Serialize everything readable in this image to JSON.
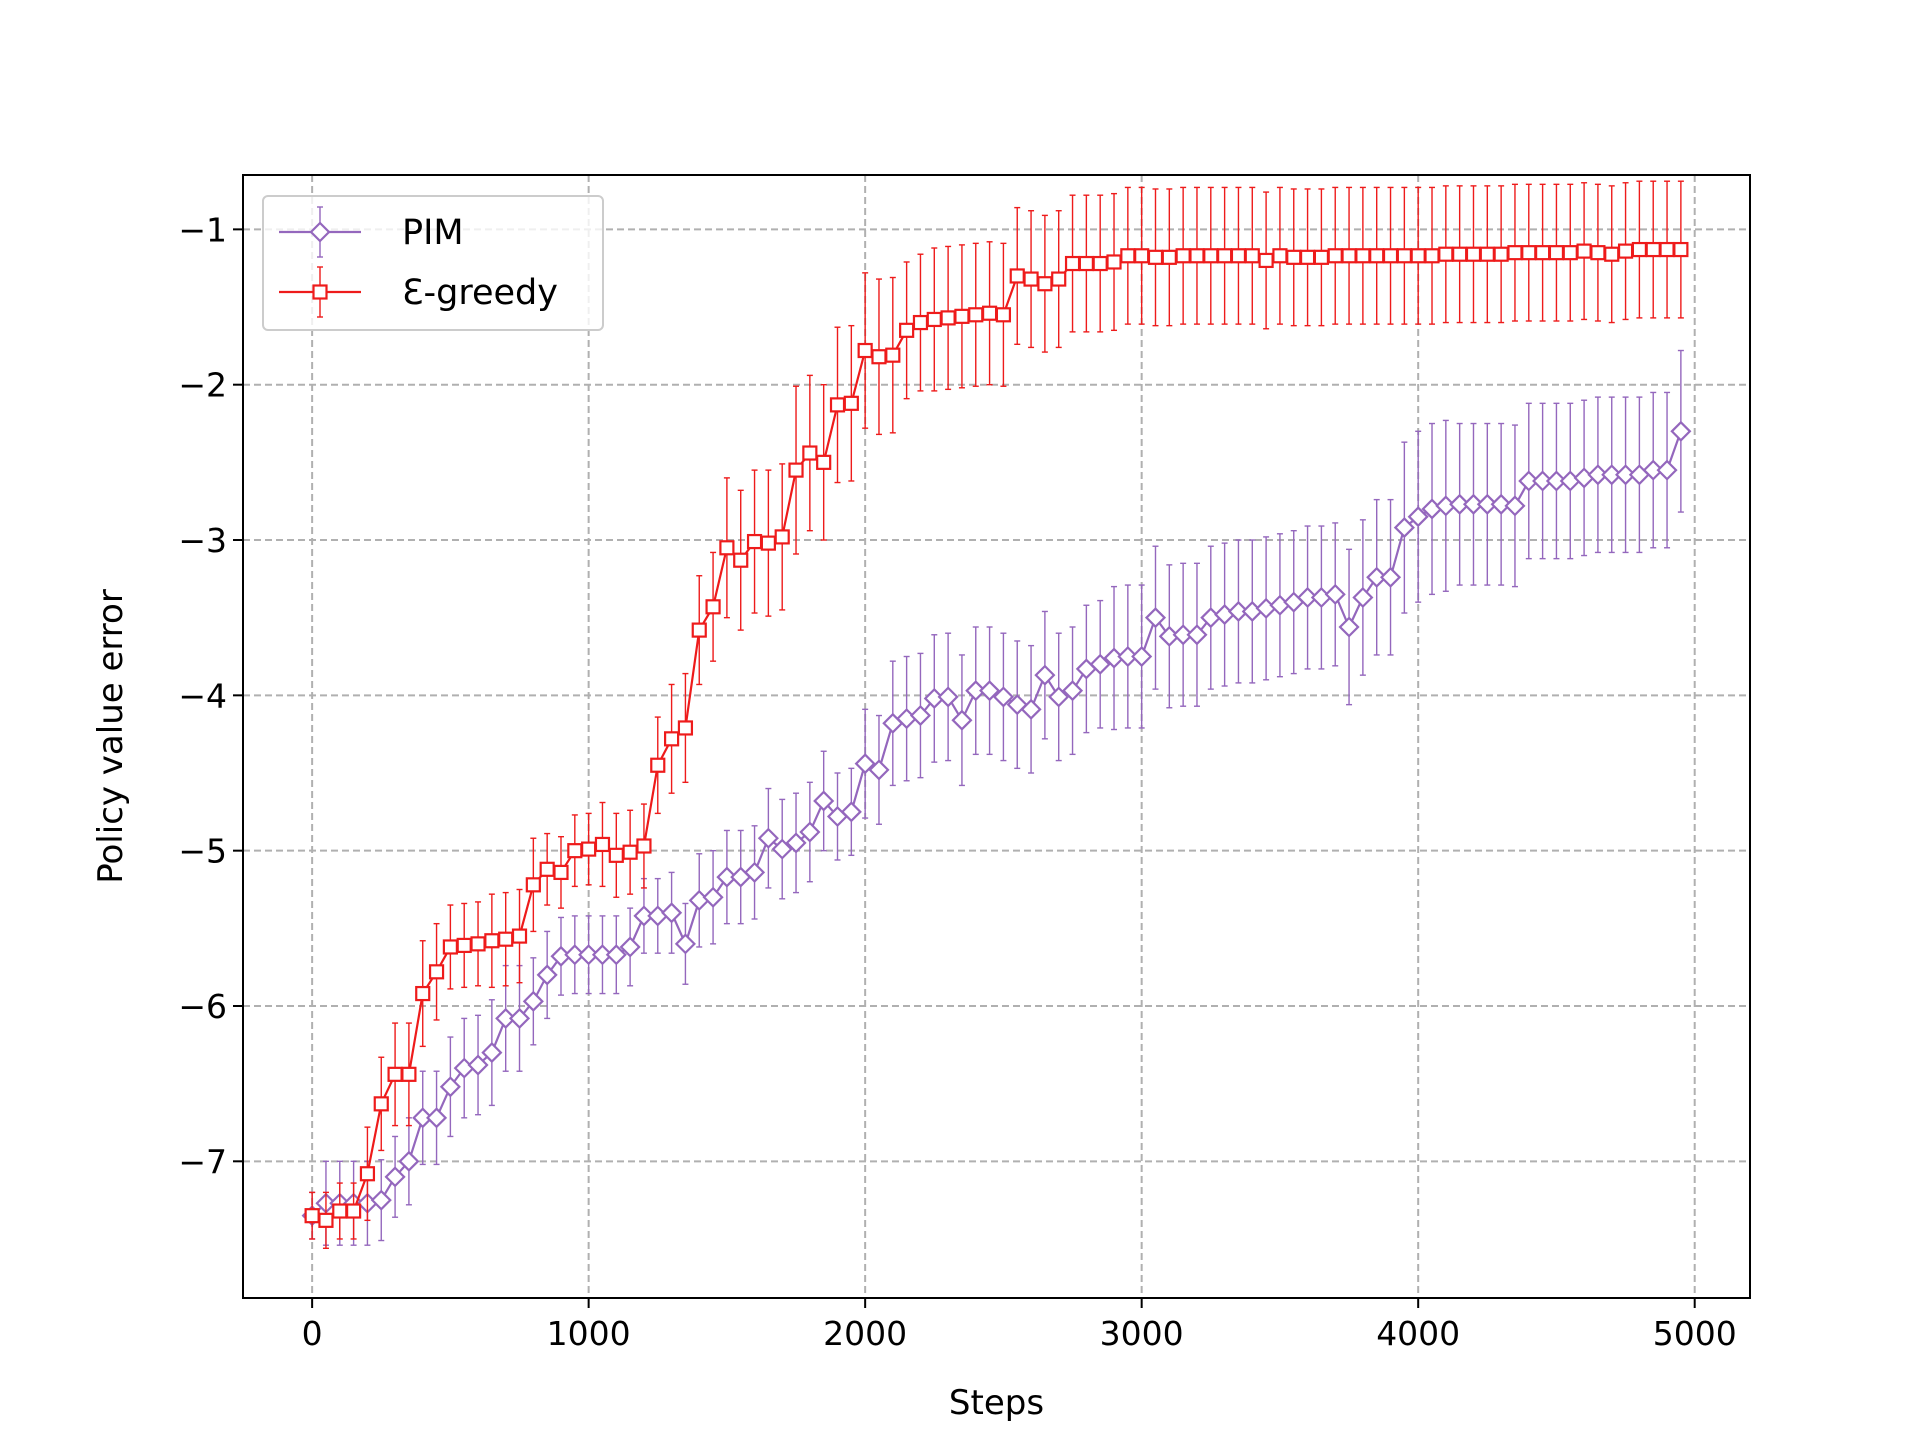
{
  "chart_data": {
    "type": "line",
    "title": "",
    "xlabel": "Steps",
    "ylabel": "Policy value error",
    "xlim": [
      -250,
      5200
    ],
    "ylim": [
      -7.88,
      -0.65
    ],
    "xticks": [
      0,
      1000,
      2000,
      3000,
      4000,
      5000
    ],
    "xtick_labels": [
      "0",
      "1000",
      "2000",
      "3000",
      "4000",
      "5000"
    ],
    "yticks": [
      -7,
      -6,
      -5,
      -4,
      -3,
      -2,
      -1
    ],
    "ytick_labels": [
      "−7",
      "−6",
      "−5",
      "−4",
      "−3",
      "−2",
      "−1"
    ],
    "grid": true,
    "legend_position": "top-left",
    "x": [
      0,
      50,
      100,
      150,
      200,
      250,
      300,
      350,
      400,
      450,
      500,
      550,
      600,
      650,
      700,
      750,
      800,
      850,
      900,
      950,
      1000,
      1050,
      1100,
      1150,
      1200,
      1250,
      1300,
      1350,
      1400,
      1450,
      1500,
      1550,
      1600,
      1650,
      1700,
      1750,
      1800,
      1850,
      1900,
      1950,
      2000,
      2050,
      2100,
      2150,
      2200,
      2250,
      2300,
      2350,
      2400,
      2450,
      2500,
      2550,
      2600,
      2650,
      2700,
      2750,
      2800,
      2850,
      2900,
      2950,
      3000,
      3050,
      3100,
      3150,
      3200,
      3250,
      3300,
      3350,
      3400,
      3450,
      3500,
      3550,
      3600,
      3650,
      3700,
      3750,
      3800,
      3850,
      3900,
      3950,
      4000,
      4050,
      4100,
      4150,
      4200,
      4250,
      4300,
      4350,
      4400,
      4450,
      4500,
      4550,
      4600,
      4650,
      4700,
      4750,
      4800,
      4850,
      4900,
      4950
    ],
    "series": [
      {
        "name": "PIM",
        "color": "#9467bd",
        "marker": "diamond",
        "values": [
          -7.35,
          -7.27,
          -7.27,
          -7.27,
          -7.27,
          -7.25,
          -7.1,
          -7.0,
          -6.72,
          -6.72,
          -6.52,
          -6.4,
          -6.38,
          -6.3,
          -6.08,
          -6.08,
          -5.97,
          -5.8,
          -5.68,
          -5.67,
          -5.67,
          -5.67,
          -5.67,
          -5.62,
          -5.42,
          -5.42,
          -5.4,
          -5.6,
          -5.32,
          -5.3,
          -5.17,
          -5.17,
          -5.14,
          -4.92,
          -4.99,
          -4.95,
          -4.88,
          -4.68,
          -4.78,
          -4.75,
          -4.44,
          -4.48,
          -4.18,
          -4.15,
          -4.13,
          -4.02,
          -4.01,
          -4.16,
          -3.97,
          -3.97,
          -4.01,
          -4.06,
          -4.09,
          -3.87,
          -4.01,
          -3.97,
          -3.83,
          -3.8,
          -3.76,
          -3.75,
          -3.75,
          -3.5,
          -3.62,
          -3.61,
          -3.61,
          -3.5,
          -3.48,
          -3.46,
          -3.46,
          -3.44,
          -3.42,
          -3.4,
          -3.37,
          -3.37,
          -3.35,
          -3.56,
          -3.37,
          -3.24,
          -3.24,
          -2.92,
          -2.85,
          -2.8,
          -2.78,
          -2.77,
          -2.77,
          -2.77,
          -2.77,
          -2.78,
          -2.62,
          -2.62,
          -2.62,
          -2.62,
          -2.6,
          -2.58,
          -2.58,
          -2.58,
          -2.58,
          -2.55,
          -2.55,
          -2.3
        ],
        "errors": [
          0.15,
          0.27,
          0.27,
          0.27,
          0.27,
          0.26,
          0.26,
          0.28,
          0.3,
          0.3,
          0.32,
          0.32,
          0.32,
          0.34,
          0.34,
          0.34,
          0.28,
          0.28,
          0.25,
          0.25,
          0.25,
          0.25,
          0.25,
          0.25,
          0.24,
          0.24,
          0.26,
          0.26,
          0.3,
          0.3,
          0.3,
          0.3,
          0.3,
          0.32,
          0.32,
          0.32,
          0.32,
          0.32,
          0.28,
          0.28,
          0.35,
          0.35,
          0.4,
          0.4,
          0.4,
          0.41,
          0.41,
          0.42,
          0.41,
          0.41,
          0.41,
          0.41,
          0.41,
          0.41,
          0.41,
          0.41,
          0.41,
          0.41,
          0.46,
          0.46,
          0.46,
          0.46,
          0.46,
          0.46,
          0.46,
          0.46,
          0.46,
          0.46,
          0.46,
          0.46,
          0.46,
          0.46,
          0.46,
          0.46,
          0.46,
          0.5,
          0.5,
          0.5,
          0.5,
          0.55,
          0.55,
          0.55,
          0.55,
          0.52,
          0.52,
          0.52,
          0.52,
          0.52,
          0.5,
          0.5,
          0.5,
          0.5,
          0.5,
          0.5,
          0.5,
          0.5,
          0.5,
          0.5,
          0.5,
          0.52
        ]
      },
      {
        "name": "Ɛ-greedy",
        "color": "#ee1b1b",
        "marker": "square",
        "values": [
          -7.35,
          -7.38,
          -7.32,
          -7.32,
          -7.08,
          -6.63,
          -6.44,
          -6.44,
          -5.92,
          -5.78,
          -5.62,
          -5.61,
          -5.6,
          -5.58,
          -5.57,
          -5.55,
          -5.22,
          -5.12,
          -5.14,
          -5.0,
          -4.99,
          -4.96,
          -5.03,
          -5.01,
          -4.97,
          -4.45,
          -4.28,
          -4.21,
          -3.58,
          -3.43,
          -3.05,
          -3.13,
          -3.01,
          -3.02,
          -2.98,
          -2.55,
          -2.44,
          -2.5,
          -2.13,
          -2.12,
          -1.78,
          -1.82,
          -1.81,
          -1.65,
          -1.6,
          -1.58,
          -1.57,
          -1.56,
          -1.55,
          -1.54,
          -1.55,
          -1.3,
          -1.32,
          -1.35,
          -1.32,
          -1.22,
          -1.22,
          -1.22,
          -1.21,
          -1.17,
          -1.17,
          -1.18,
          -1.18,
          -1.17,
          -1.17,
          -1.17,
          -1.17,
          -1.17,
          -1.17,
          -1.2,
          -1.17,
          -1.18,
          -1.18,
          -1.18,
          -1.17,
          -1.17,
          -1.17,
          -1.17,
          -1.17,
          -1.17,
          -1.17,
          -1.17,
          -1.16,
          -1.16,
          -1.16,
          -1.16,
          -1.16,
          -1.15,
          -1.15,
          -1.15,
          -1.15,
          -1.15,
          -1.14,
          -1.15,
          -1.16,
          -1.14,
          -1.13,
          -1.13,
          -1.13,
          -1.13
        ],
        "errors": [
          0.15,
          0.18,
          0.18,
          0.18,
          0.3,
          0.3,
          0.33,
          0.33,
          0.34,
          0.31,
          0.27,
          0.27,
          0.27,
          0.3,
          0.3,
          0.3,
          0.3,
          0.23,
          0.23,
          0.23,
          0.23,
          0.27,
          0.27,
          0.27,
          0.27,
          0.31,
          0.35,
          0.35,
          0.35,
          0.35,
          0.45,
          0.45,
          0.46,
          0.47,
          0.47,
          0.54,
          0.5,
          0.5,
          0.5,
          0.5,
          0.5,
          0.5,
          0.5,
          0.44,
          0.44,
          0.46,
          0.46,
          0.46,
          0.46,
          0.46,
          0.46,
          0.44,
          0.44,
          0.44,
          0.44,
          0.44,
          0.44,
          0.44,
          0.44,
          0.44,
          0.44,
          0.44,
          0.44,
          0.44,
          0.44,
          0.44,
          0.44,
          0.44,
          0.44,
          0.44,
          0.44,
          0.44,
          0.44,
          0.44,
          0.44,
          0.44,
          0.44,
          0.44,
          0.44,
          0.44,
          0.44,
          0.44,
          0.44,
          0.44,
          0.44,
          0.44,
          0.44,
          0.44,
          0.44,
          0.44,
          0.44,
          0.44,
          0.44,
          0.44,
          0.44,
          0.44,
          0.44,
          0.44,
          0.44,
          0.44
        ]
      }
    ]
  }
}
